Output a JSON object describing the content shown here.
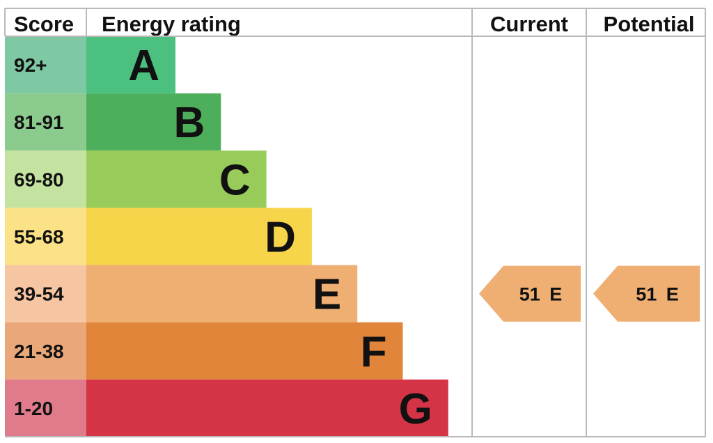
{
  "headers": {
    "score": "Score",
    "energy_rating": "Energy rating",
    "current": "Current",
    "potential": "Potential"
  },
  "chart_data": {
    "type": "bar",
    "bands": [
      {
        "letter": "A",
        "range": "92+",
        "score_color": "#7ec8a4",
        "bar_color": "#4cc17f"
      },
      {
        "letter": "B",
        "range": "81-91",
        "score_color": "#8ccb8e",
        "bar_color": "#4daf5c"
      },
      {
        "letter": "C",
        "range": "69-80",
        "score_color": "#c4e2a0",
        "bar_color": "#98cb5a"
      },
      {
        "letter": "D",
        "range": "55-68",
        "score_color": "#fbe286",
        "bar_color": "#f6d54a"
      },
      {
        "letter": "E",
        "range": "39-54",
        "score_color": "#f6c6a2",
        "bar_color": "#efae72"
      },
      {
        "letter": "F",
        "range": "21-38",
        "score_color": "#eaa87a",
        "bar_color": "#e1853a"
      },
      {
        "letter": "G",
        "range": "1-20",
        "score_color": "#e07b8c",
        "bar_color": "#d43445"
      }
    ],
    "current": {
      "score": "51",
      "band": "E",
      "color": "#efae72"
    },
    "potential": {
      "score": "51",
      "band": "E",
      "color": "#efae72"
    }
  }
}
